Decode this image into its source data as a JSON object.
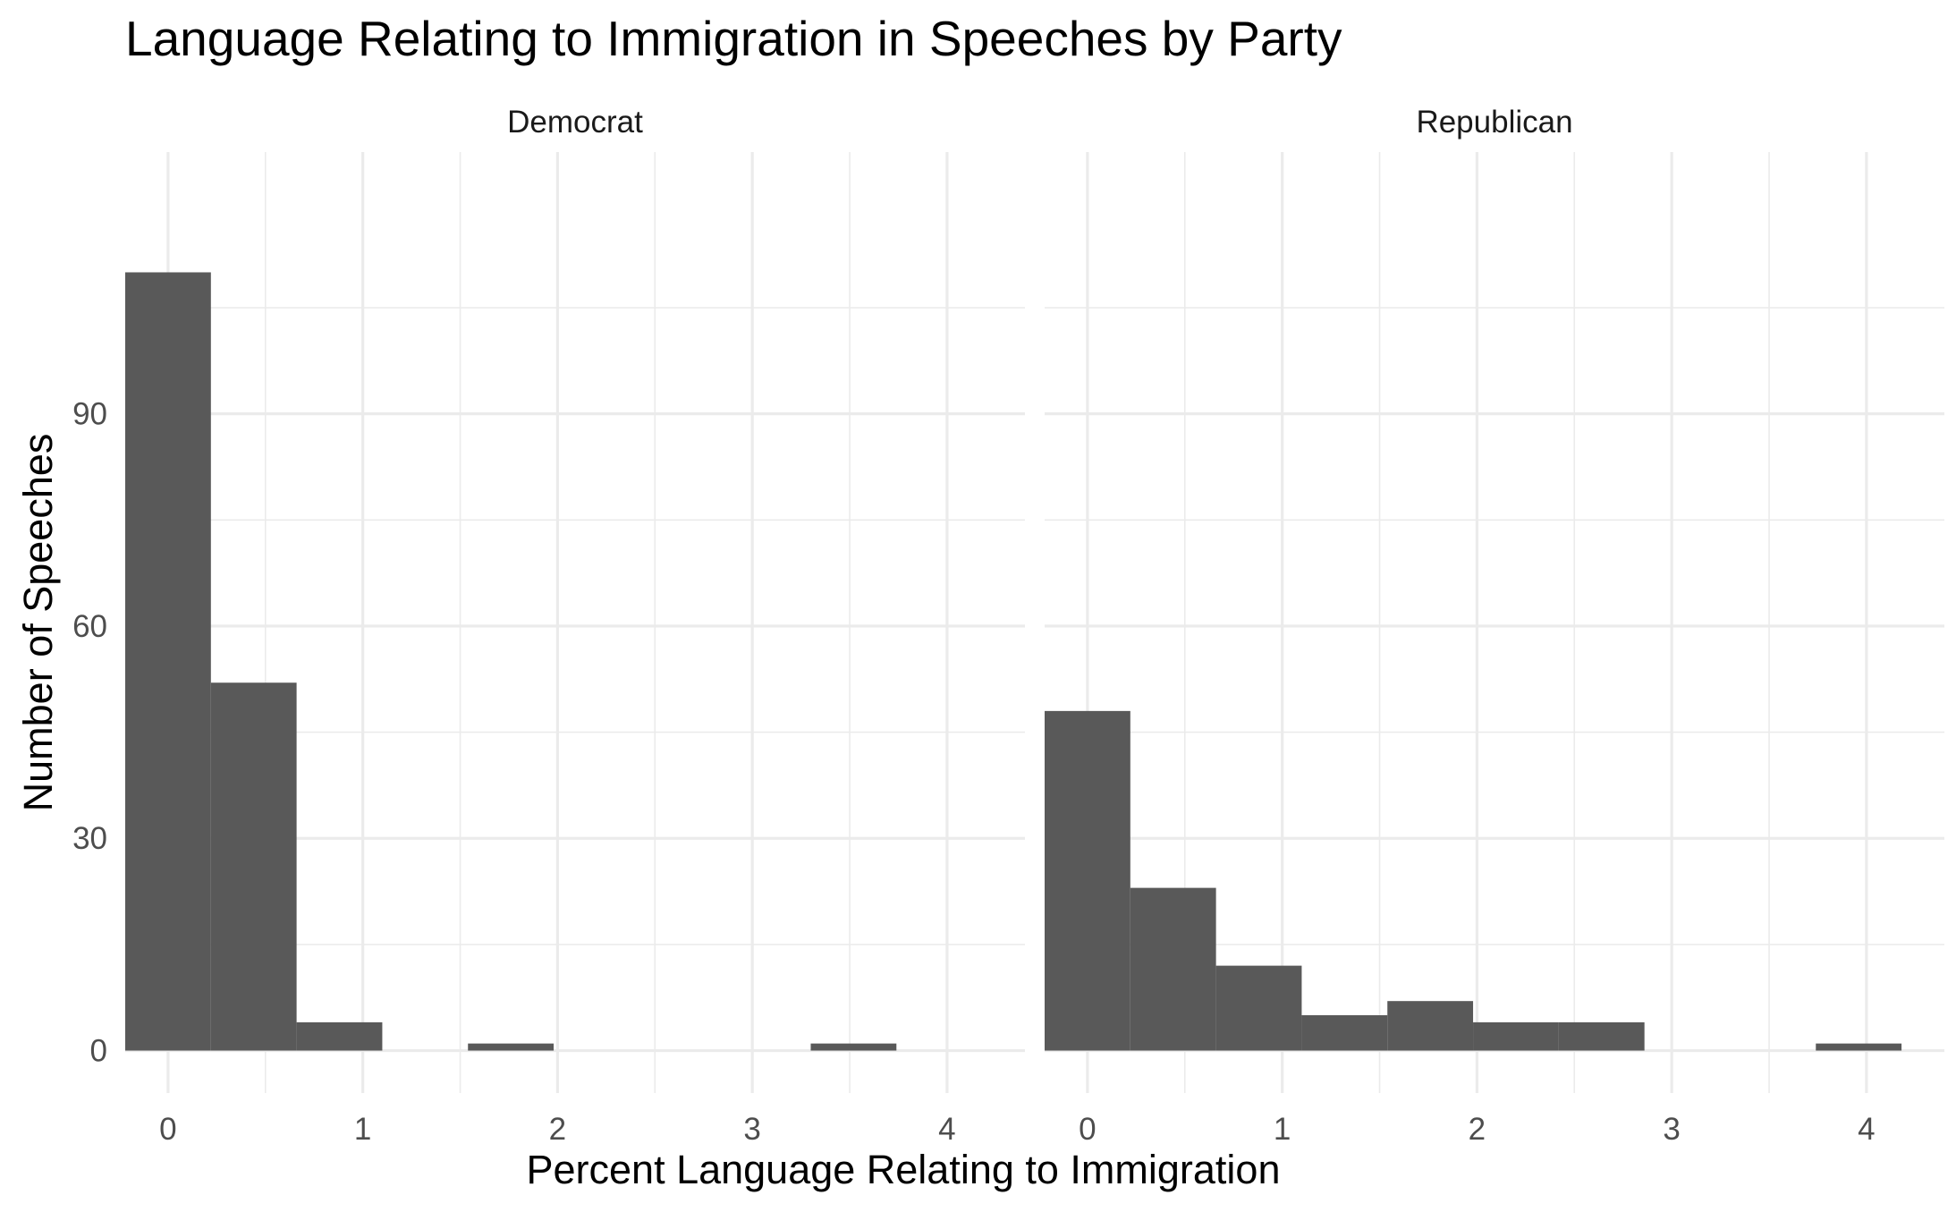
{
  "chart_data": {
    "type": "bar",
    "subtype": "faceted histogram",
    "title": "Language Relating to Immigration in Speeches by Party",
    "xlabel": "Percent Language Relating to Immigration",
    "ylabel": "Number of Speeches",
    "xlim": [
      -0.22,
      4.4
    ],
    "ylim": [
      -6,
      127
    ],
    "x_ticks": [
      "0",
      "1",
      "2",
      "3",
      "4"
    ],
    "y_ticks": [
      "0",
      "30",
      "60",
      "90"
    ],
    "grid": true,
    "legend": "none",
    "bar_color": "#595959",
    "bin_width": 0.44,
    "facets": [
      {
        "name": "Democrat",
        "bins": [
          {
            "x0": -0.22,
            "x1": 0.22,
            "count": 110
          },
          {
            "x0": 0.22,
            "x1": 0.66,
            "count": 52
          },
          {
            "x0": 0.66,
            "x1": 1.1,
            "count": 4
          },
          {
            "x0": 1.1,
            "x1": 1.54,
            "count": 0
          },
          {
            "x0": 1.54,
            "x1": 1.98,
            "count": 1
          },
          {
            "x0": 1.98,
            "x1": 2.42,
            "count": 0
          },
          {
            "x0": 2.42,
            "x1": 2.86,
            "count": 0
          },
          {
            "x0": 2.86,
            "x1": 3.3,
            "count": 0
          },
          {
            "x0": 3.3,
            "x1": 3.74,
            "count": 1
          }
        ]
      },
      {
        "name": "Republican",
        "bins": [
          {
            "x0": -0.22,
            "x1": 0.22,
            "count": 48
          },
          {
            "x0": 0.22,
            "x1": 0.66,
            "count": 23
          },
          {
            "x0": 0.66,
            "x1": 1.1,
            "count": 12
          },
          {
            "x0": 1.1,
            "x1": 1.54,
            "count": 5
          },
          {
            "x0": 1.54,
            "x1": 1.98,
            "count": 7
          },
          {
            "x0": 1.98,
            "x1": 2.42,
            "count": 4
          },
          {
            "x0": 2.42,
            "x1": 2.86,
            "count": 4
          },
          {
            "x0": 2.86,
            "x1": 3.3,
            "count": 0
          },
          {
            "x0": 3.3,
            "x1": 3.74,
            "count": 0
          },
          {
            "x0": 3.74,
            "x1": 4.18,
            "count": 1
          }
        ]
      }
    ]
  }
}
